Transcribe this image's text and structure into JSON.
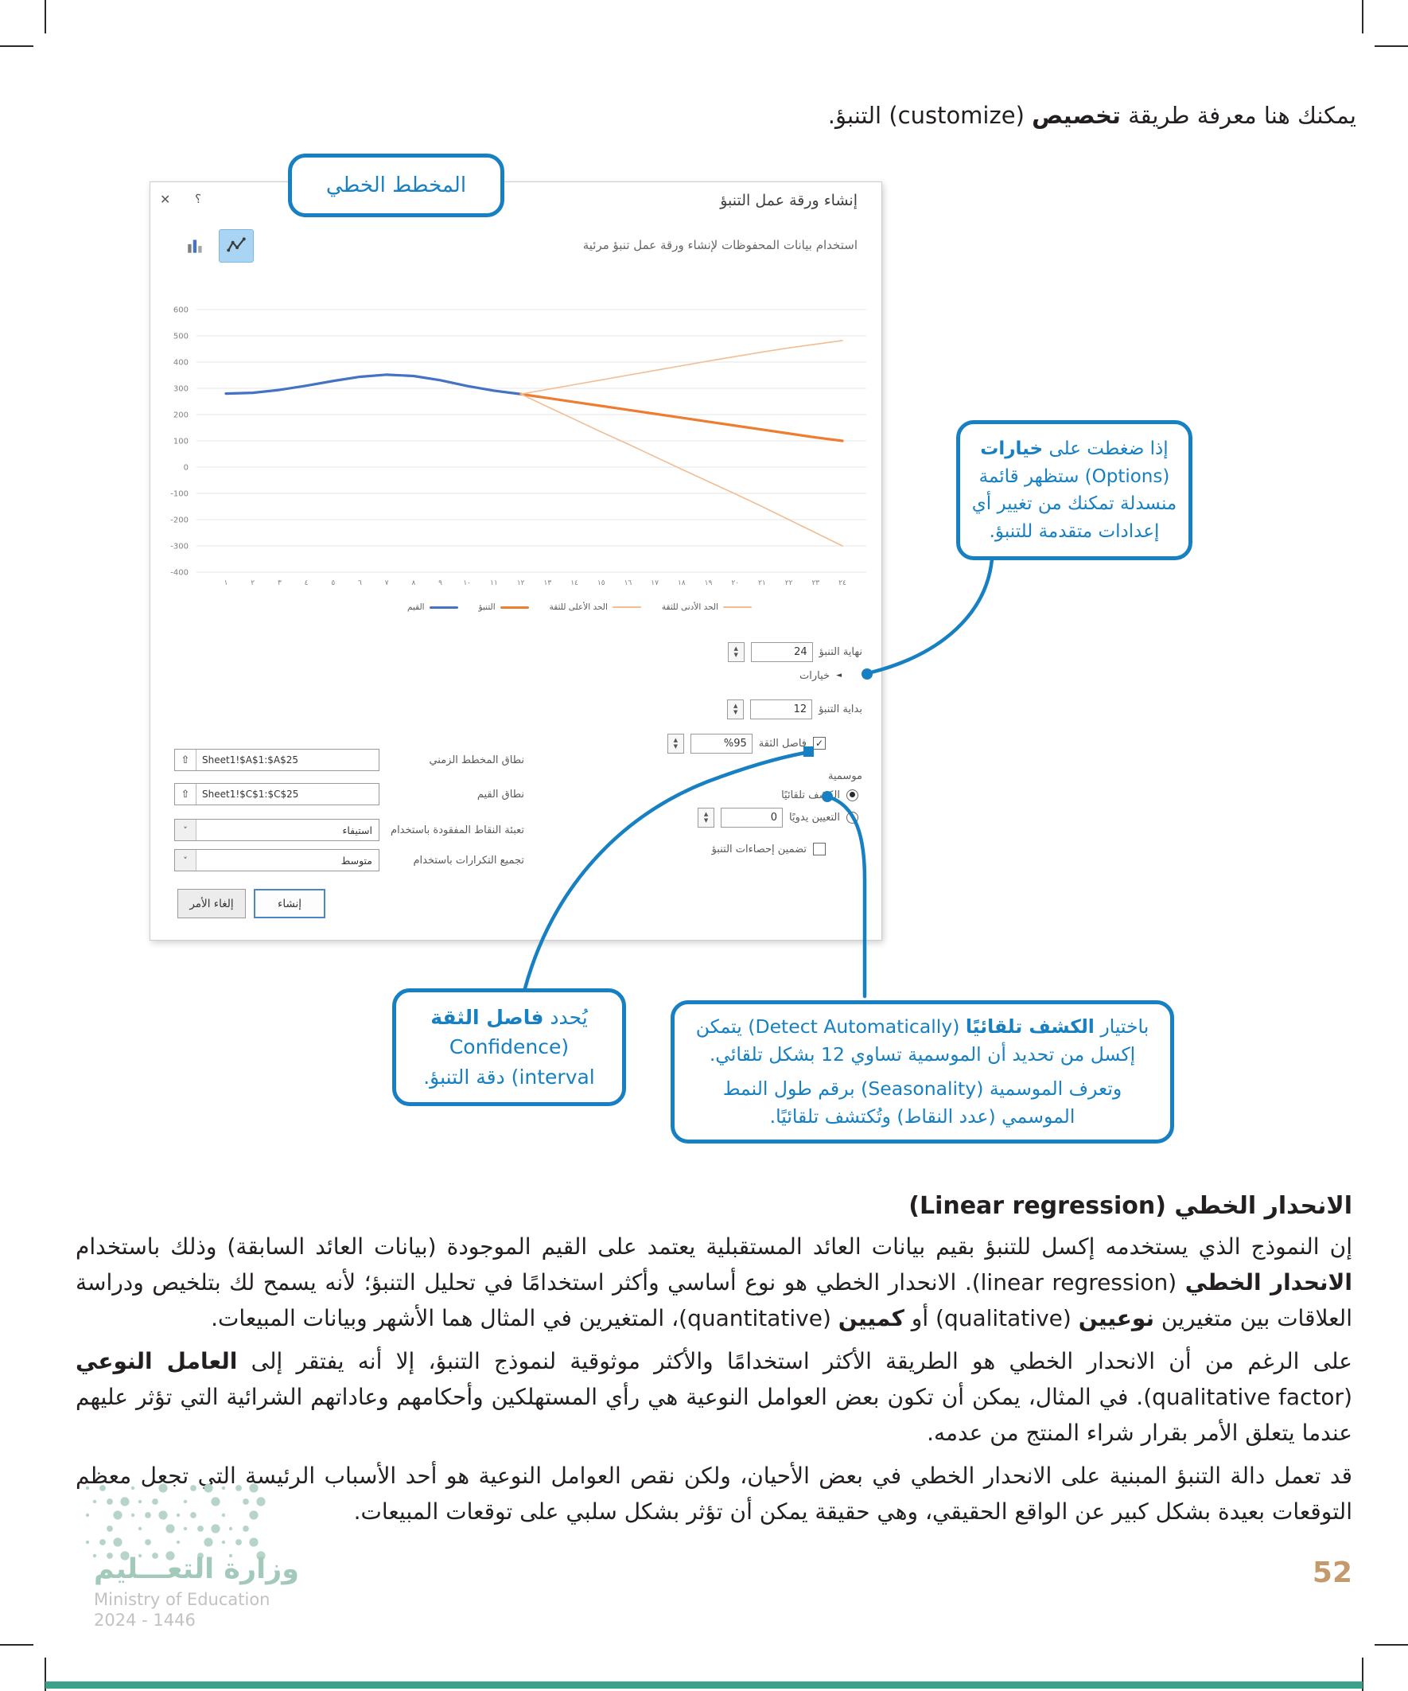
{
  "colors": {
    "accent_blue": "#1780c2",
    "values_line": "#4472c4",
    "forecast_line": "#ed7d31",
    "bound_line": "#f3bd92",
    "ministry_green": "#a3c9bb",
    "page_number_tan": "#c49a6c",
    "footer_bar_green": "#3ba18b"
  },
  "icons": {
    "close": "✕",
    "help": "؟",
    "spinner_up": "▲",
    "spinner_down": "▼",
    "check": "✓",
    "dropdown": "˅",
    "range_selector": "⇧",
    "options_expander": "◄"
  },
  "page": {
    "intro": [
      {
        "t": "يمكنك هنا معرفة طريقة "
      },
      {
        "t": "تخصيص",
        "b": 1
      },
      {
        "t": " (customize) التنبؤ."
      }
    ],
    "heading": "الانحدار الخطي (Linear regression)",
    "paragraphs": [
      [
        {
          "t": "إن النموذج الذي يستخدمه إكسل للتنبؤ بقيم بيانات العائد المستقبلية يعتمد على القيم الموجودة (بيانات العائد السابقة) وذلك باستخدام "
        },
        {
          "t": "الانحدار الخطي",
          "b": 1
        },
        {
          "t": " (linear regression). الانحدار الخطي هو نوع أساسي وأكثر استخدامًا في تحليل التنبؤ؛ لأنه يسمح لك بتلخيص ودراسة العلاقات بين متغيرين "
        },
        {
          "t": "نوعيين",
          "b": 1
        },
        {
          "t": " (qualitative) أو "
        },
        {
          "t": "كميين",
          "b": 1
        },
        {
          "t": " (quantitative)، المتغيرين في المثال هما الأشهر وبيانات المبيعات."
        }
      ],
      [
        {
          "t": "على الرغم من أن الانحدار الخطي هو الطريقة الأكثر استخدامًا والأكثر موثوقية لنموذج التنبؤ، إلا أنه يفتقر إلى "
        },
        {
          "t": "العامل النوعي",
          "b": 1
        },
        {
          "t": " (qualitative factor). في المثال، يمكن أن تكون بعض العوامل النوعية هي رأي المستهلكين وأحكامهم وعاداتهم الشرائية التي تؤثر عليهم عندما يتعلق الأمر بقرار شراء المنتج من عدمه."
        }
      ],
      [
        {
          "t": "قد تعمل دالة التنبؤ المبنية على الانحدار الخطي في بعض الأحيان، ولكن نقص العوامل النوعية هو أحد الأسباب الرئيسة التي تجعل معظم التوقعات بعيدة بشكل كبير عن الواقع الحقيقي، وهي حقيقة يمكن أن تؤثر بشكل سلبي على توقعات المبيعات."
        }
      ]
    ]
  },
  "dialog": {
    "title": "إنشاء ورقة عمل التنبؤ",
    "subtitle": "استخدام بيانات المحفوظات لإنشاء ورقة عمل تنبؤ مرئية",
    "options": {
      "forecast_end": {
        "label": "نهاية التنبؤ",
        "value": "24"
      },
      "options_label": "خيارات",
      "forecast_start": {
        "label": "بداية التنبؤ",
        "value": "12"
      },
      "confidence": {
        "label": "فاصل الثقة",
        "value": "%95",
        "checked": true
      },
      "seasonality_label": "موسمية",
      "detect_auto_label": "الكشف تلقائيًا",
      "set_manually": {
        "label": "التعيين يدويًا",
        "value": "0"
      },
      "include_stats_label": "تضمين إحصاءات التنبؤ"
    },
    "ranges": {
      "timeline": {
        "label": "نطاق المخطط الزمني",
        "value": "Sheet1!$A$1:$A$25"
      },
      "values": {
        "label": "نطاق القيم",
        "value": "Sheet1!$C$1:$C$25"
      },
      "fill_missing": {
        "label": "تعبئة النقاط المفقودة باستخدام",
        "value": "استيفاء"
      },
      "aggregate": {
        "label": "تجميع التكرارات باستخدام",
        "value": "متوسط"
      }
    },
    "buttons": {
      "create": "إنشاء",
      "cancel": "إلغاء الأمر"
    }
  },
  "chart_data": {
    "type": "line",
    "title": "",
    "xlabel": "",
    "ylabel": "",
    "ylim": [
      -400,
      600
    ],
    "ytick_step": 100,
    "grid": true,
    "legend_position": "bottom",
    "x_ticks": [
      "١",
      "٢",
      "٣",
      "٤",
      "٥",
      "٦",
      "٧",
      "٨",
      "٩",
      "١٠",
      "١١",
      "١٢",
      "١٣",
      "١٤",
      "١٥",
      "١٦",
      "١٧",
      "١٨",
      "١٩",
      "٢٠",
      "٢١",
      "٢٢",
      "٢٣",
      "٢٤"
    ],
    "series": [
      {
        "name": "القيم",
        "color": "#4472c4",
        "x": [
          1,
          2,
          3,
          4,
          5,
          6,
          7,
          8,
          9,
          10,
          11,
          12
        ],
        "values": [
          280,
          283,
          294,
          310,
          328,
          344,
          352,
          347,
          331,
          309,
          291,
          278
        ]
      },
      {
        "name": "التنبؤ",
        "color": "#ed7d31",
        "x": [
          12,
          13,
          14,
          15,
          16,
          17,
          18,
          19,
          20,
          21,
          22,
          23,
          24
        ],
        "values": [
          278,
          263,
          248,
          233,
          218,
          203,
          188,
          173,
          158,
          143,
          128,
          113,
          100
        ]
      },
      {
        "name": "الحد الأعلى للثقة",
        "color": "#f3bd92",
        "x": [
          12,
          13,
          14,
          15,
          16,
          17,
          18,
          19,
          20,
          21,
          22,
          23,
          24
        ],
        "values": [
          278,
          296,
          314,
          332,
          350,
          368,
          386,
          404,
          421,
          438,
          454,
          468,
          482
        ]
      },
      {
        "name": "الحد الأدنى للثقة",
        "color": "#f3bd92",
        "x": [
          12,
          13,
          14,
          15,
          16,
          17,
          18,
          19,
          20,
          21,
          22,
          23,
          24
        ],
        "values": [
          278,
          230,
          182,
          134,
          88,
          40,
          -8,
          -55,
          -102,
          -150,
          -200,
          -250,
          -300
        ]
      }
    ]
  },
  "callouts": {
    "chart_label": "المخطط الخطي",
    "options": [
      {
        "t": "إذا ضغطت على "
      },
      {
        "t": "خيارات",
        "b": 1
      },
      {
        "t": " (Options) ستظهر قائمة منسدلة تمكنك من تغيير أي إعدادات متقدمة للتنبؤ."
      }
    ],
    "confidence": [
      {
        "t": "يُحدد "
      },
      {
        "t": "فاصل الثقة",
        "b": 1
      },
      {
        "t": " (Confidence interval) دقة التنبؤ."
      }
    ],
    "detect_p1": [
      {
        "t": "باختيار "
      },
      {
        "t": "الكشف تلقائيًا",
        "b": 1
      },
      {
        "t": " (Detect Automatically) يتمكن إكسل من تحديد أن الموسمية تساوي 12 بشكل تلقائي."
      }
    ],
    "detect_p2": [
      {
        "t": "وتعرف الموسمية (Seasonality) برقم طول النمط الموسمي (عدد النقاط) وتُكتشف تلقائيًا."
      }
    ]
  },
  "footer": {
    "ministry_ar": "وزارة التعـــليم",
    "ministry_en": "Ministry of Education",
    "years": "2024 - 1446",
    "page_number": "52"
  }
}
